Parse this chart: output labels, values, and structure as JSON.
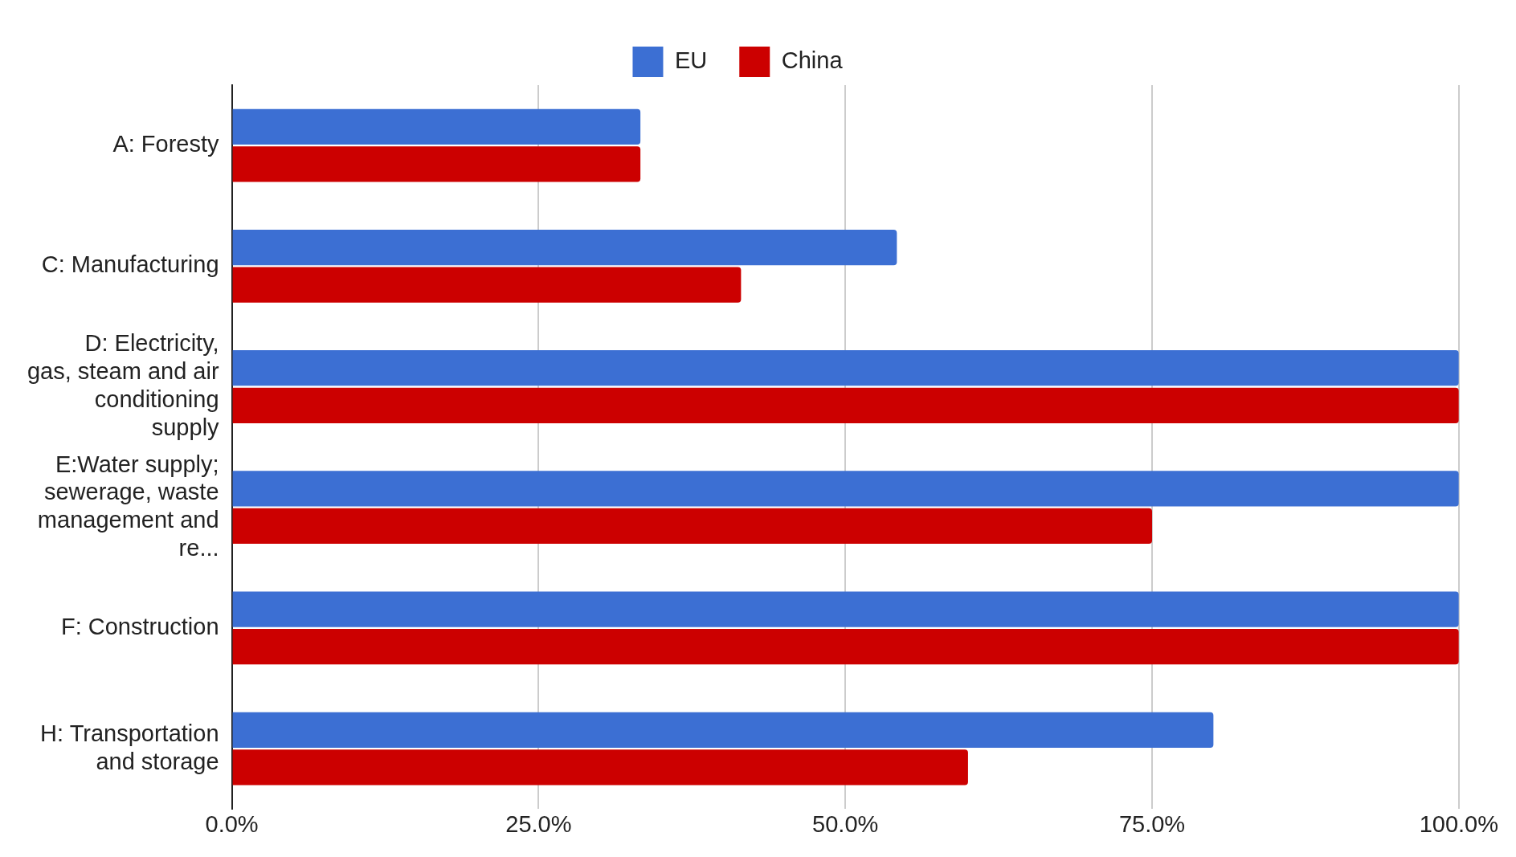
{
  "chart_data": {
    "type": "bar",
    "orientation": "horizontal",
    "categories": [
      "A: Foresty",
      "C: Manufacturing",
      "D: Electricity, gas, steam and air conditioning supply",
      "E:Water supply; sewerage, waste management and re...",
      "F: Construction",
      "H: Transportation and storage"
    ],
    "series": [
      {
        "name": "EU",
        "color": "#3c6fd3",
        "values": [
          33.3,
          54.2,
          100,
          100,
          100,
          80
        ]
      },
      {
        "name": "China",
        "color": "#cc0000",
        "values": [
          33.3,
          41.5,
          100,
          75,
          100,
          60
        ]
      }
    ],
    "xlim": [
      0,
      100
    ],
    "xticks": [
      {
        "value": 0,
        "label": "0.0%"
      },
      {
        "value": 25,
        "label": "25.0%"
      },
      {
        "value": 50,
        "label": "50.0%"
      },
      {
        "value": 75,
        "label": "75.0%"
      },
      {
        "value": 100,
        "label": "100.0%"
      }
    ],
    "grid": "x",
    "legend": "top"
  }
}
